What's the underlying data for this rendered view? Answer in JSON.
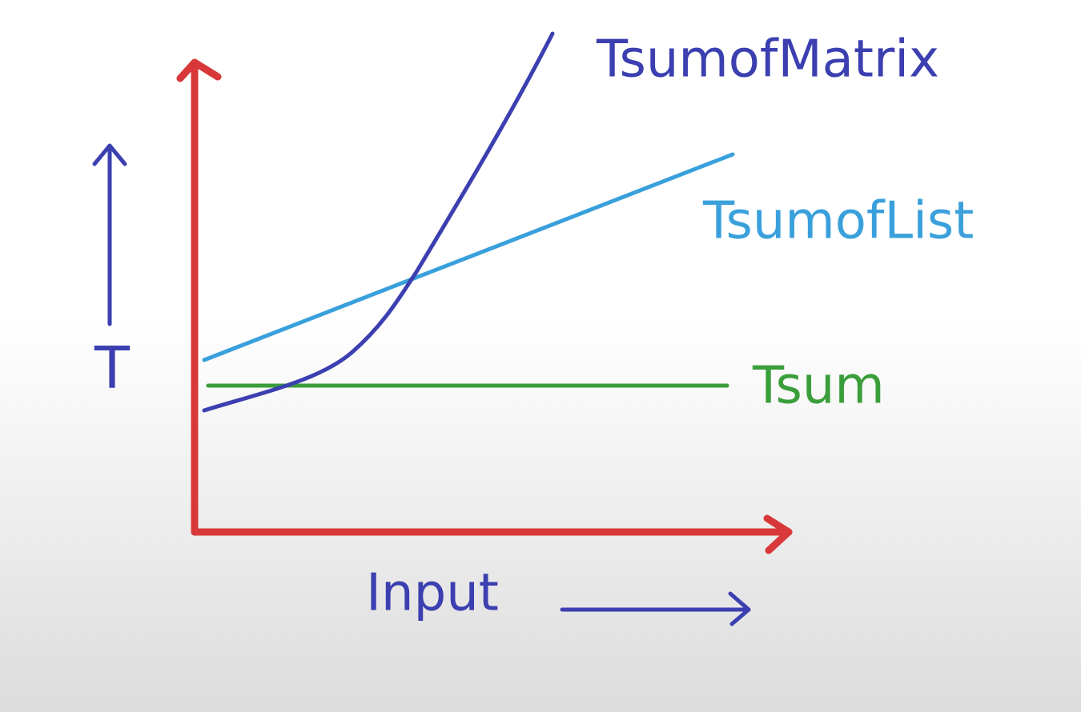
{
  "y_axis_label": "T",
  "x_axis_label": "Input",
  "curves": [
    {
      "label": "TsumofMatrix"
    },
    {
      "label": "TsumofList"
    },
    {
      "label": "Tsum"
    }
  ]
}
